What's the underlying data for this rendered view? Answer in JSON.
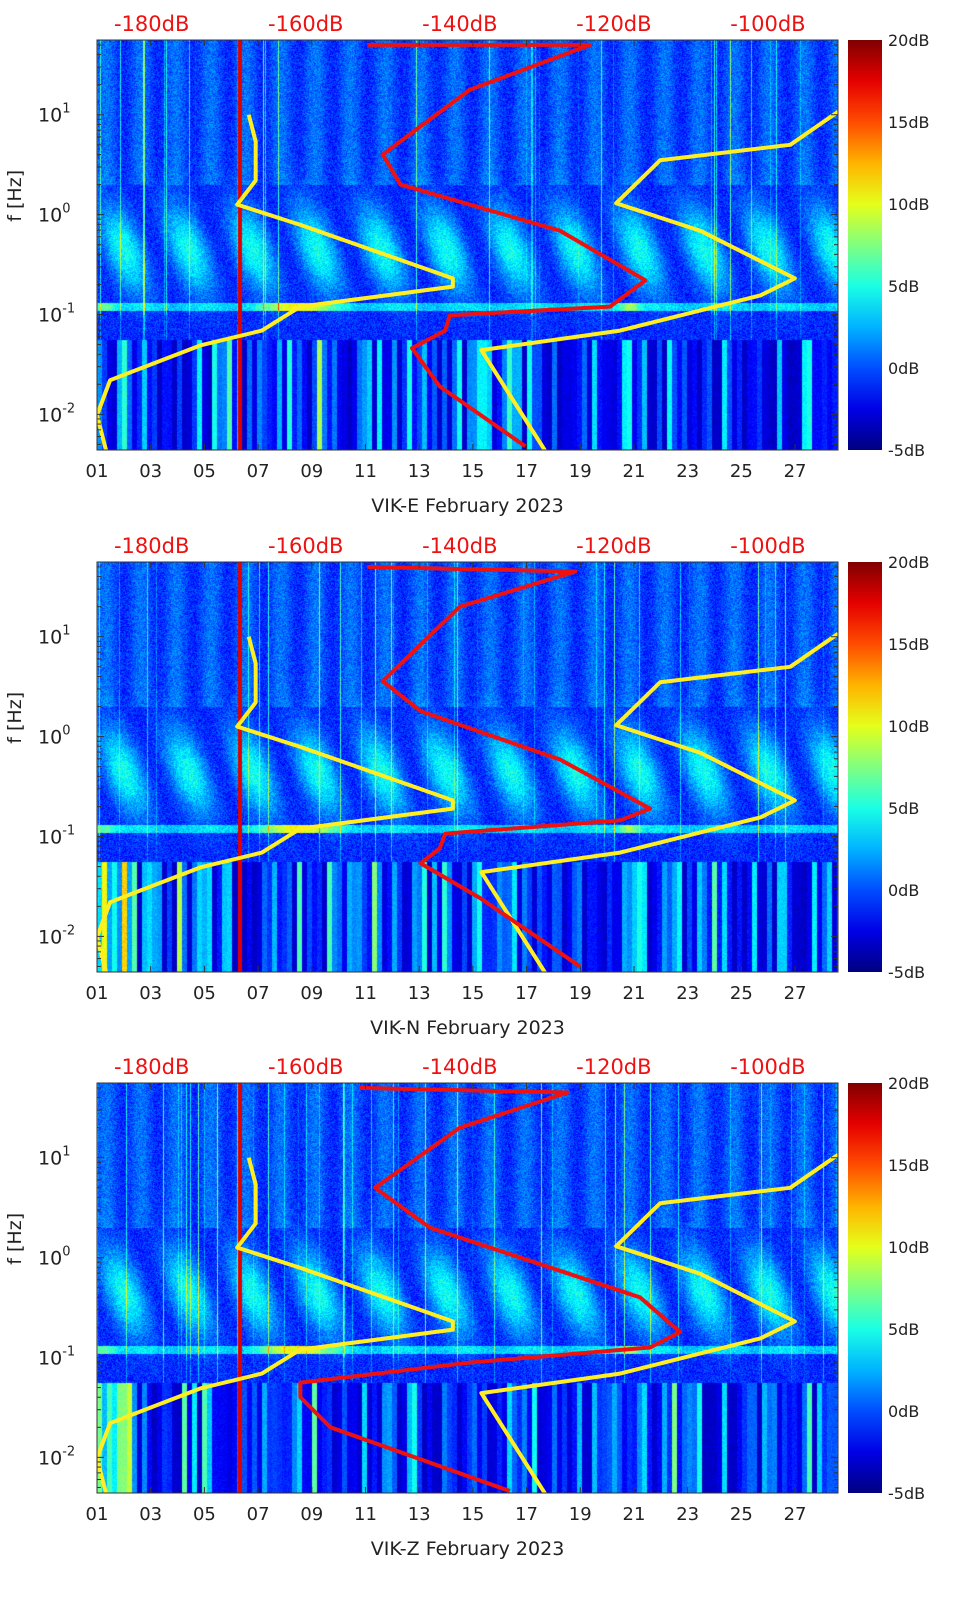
{
  "chart_data": {
    "type": "heatmap",
    "x_range_days": [
      1,
      28.6
    ],
    "x_ticks": [
      "01",
      "03",
      "05",
      "07",
      "09",
      "11",
      "13",
      "15",
      "17",
      "19",
      "21",
      "23",
      "25",
      "27"
    ],
    "y_label": "f [Hz]",
    "y_range_hz": [
      0.0044,
      56
    ],
    "y_scale": "log",
    "y_ticks": [
      {
        "exp": "1"
      },
      {
        "exp": "0"
      },
      {
        "exp": "-1"
      },
      {
        "exp": "-2"
      }
    ],
    "y_tick_base": "10",
    "top_axis_range_db": [
      -187.1,
      -90.9
    ],
    "top_ticks": [
      "-180dB",
      "-160dB",
      "-140dB",
      "-120dB",
      "-100dB"
    ],
    "top_tick_values": [
      -180,
      -160,
      -140,
      -120,
      -100
    ],
    "colorbar": {
      "range_db": [
        -5,
        20
      ],
      "labels": [
        "20dB",
        "15dB",
        "10dB",
        "5dB",
        "0dB",
        "-5dB"
      ],
      "values": [
        20,
        15,
        10,
        5,
        0,
        -5
      ],
      "colormap": "jet"
    },
    "nlnm_color": "#ffee22",
    "psd_color": "#ee1111",
    "nlnm": [
      [
        -167.4,
        10
      ],
      [
        -166.5,
        5.4
      ],
      [
        -166.5,
        2.2
      ],
      [
        -168.9,
        1.26
      ],
      [
        -160.7,
        0.79
      ],
      [
        -140.9,
        0.23
      ],
      [
        -140.9,
        0.19
      ],
      [
        -160.7,
        0.12
      ],
      [
        -165.7,
        0.069
      ],
      [
        -173.7,
        0.049
      ],
      [
        -185.4,
        0.022
      ],
      [
        -187.1,
        0.0098
      ],
      [
        -185.9,
        0.0043
      ]
    ],
    "nhnm": [
      [
        -90.9,
        10.7
      ],
      [
        -97.1,
        5.0
      ],
      [
        -114.0,
        3.5
      ],
      [
        -119.7,
        1.3
      ],
      [
        -108.8,
        0.69
      ],
      [
        -96.5,
        0.23
      ],
      [
        -101.0,
        0.155
      ],
      [
        -119.2,
        0.069
      ],
      [
        -137.2,
        0.044
      ],
      [
        -128.9,
        0.0043
      ]
    ],
    "panels": [
      {
        "title": "VIK-E February 2023",
        "psd": [
          [
            -152,
            50
          ],
          [
            -123.1,
            50
          ],
          [
            -138.7,
            17.8
          ],
          [
            -150,
            4.0
          ],
          [
            -147.7,
            2.0
          ],
          [
            -127,
            0.69
          ],
          [
            -115.9,
            0.22
          ],
          [
            -120.5,
            0.12
          ],
          [
            -141.3,
            0.098
          ],
          [
            -141.9,
            0.069
          ],
          [
            -146.2,
            0.046
          ],
          [
            -142.6,
            0.019
          ],
          [
            -131.5,
            0.0048
          ]
        ]
      },
      {
        "title": "VIK-N February 2023",
        "psd": [
          [
            -152,
            50
          ],
          [
            -125,
            45
          ],
          [
            -140,
            20
          ],
          [
            -150,
            3.6
          ],
          [
            -145.1,
            1.8
          ],
          [
            -127,
            0.59
          ],
          [
            -115.3,
            0.19
          ],
          [
            -119.2,
            0.145
          ],
          [
            -141.9,
            0.107
          ],
          [
            -142.6,
            0.076
          ],
          [
            -145.1,
            0.054
          ],
          [
            -137.3,
            0.024
          ],
          [
            -124.4,
            0.005
          ]
        ]
      },
      {
        "title": "VIK-Z February 2023",
        "psd": [
          [
            -153,
            50
          ],
          [
            -126,
            45
          ],
          [
            -140,
            20
          ],
          [
            -151,
            5.0
          ],
          [
            -143.9,
            2.0
          ],
          [
            -116.6,
            0.4
          ],
          [
            -111.4,
            0.18
          ],
          [
            -115.3,
            0.126
          ],
          [
            -138.7,
            0.089
          ],
          [
            -160.7,
            0.056
          ],
          [
            -160.7,
            0.04
          ],
          [
            -156.8,
            0.02
          ],
          [
            -133.5,
            0.0046
          ]
        ]
      }
    ]
  }
}
